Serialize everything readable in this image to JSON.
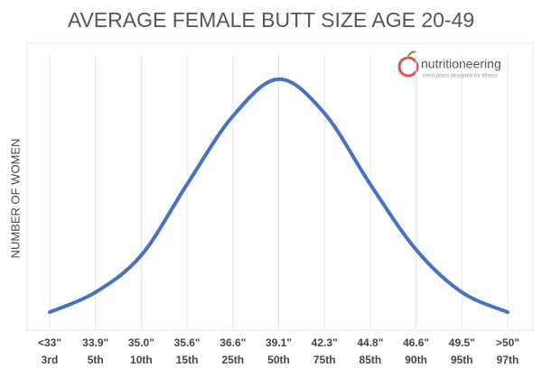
{
  "chart_data": {
    "type": "line",
    "title": "AVERAGE FEMALE BUTT SIZE AGE 20-49",
    "y_label": "NUMBER OF WOMEN",
    "categories": [
      "<33\"",
      "33.9\"",
      "35.0\"",
      "35.6\"",
      "36.6\"",
      "39.1\"",
      "42.3\"",
      "44.8\"",
      "46.6\"",
      "49.5\"",
      ">50\""
    ],
    "percentiles": [
      "3rd",
      "5th",
      "10th",
      "15th",
      "25th",
      "50th",
      "75th",
      "85th",
      "90th",
      "95th",
      "97th"
    ],
    "values": [
      6,
      13,
      26,
      51,
      75,
      88,
      76,
      51,
      28,
      13,
      6
    ],
    "color": "#4a70c4",
    "ylim": [
      0,
      100
    ],
    "grid": true,
    "logo": {
      "name": "nutritioneering",
      "tagline": "meal plans designed for fitness"
    }
  }
}
